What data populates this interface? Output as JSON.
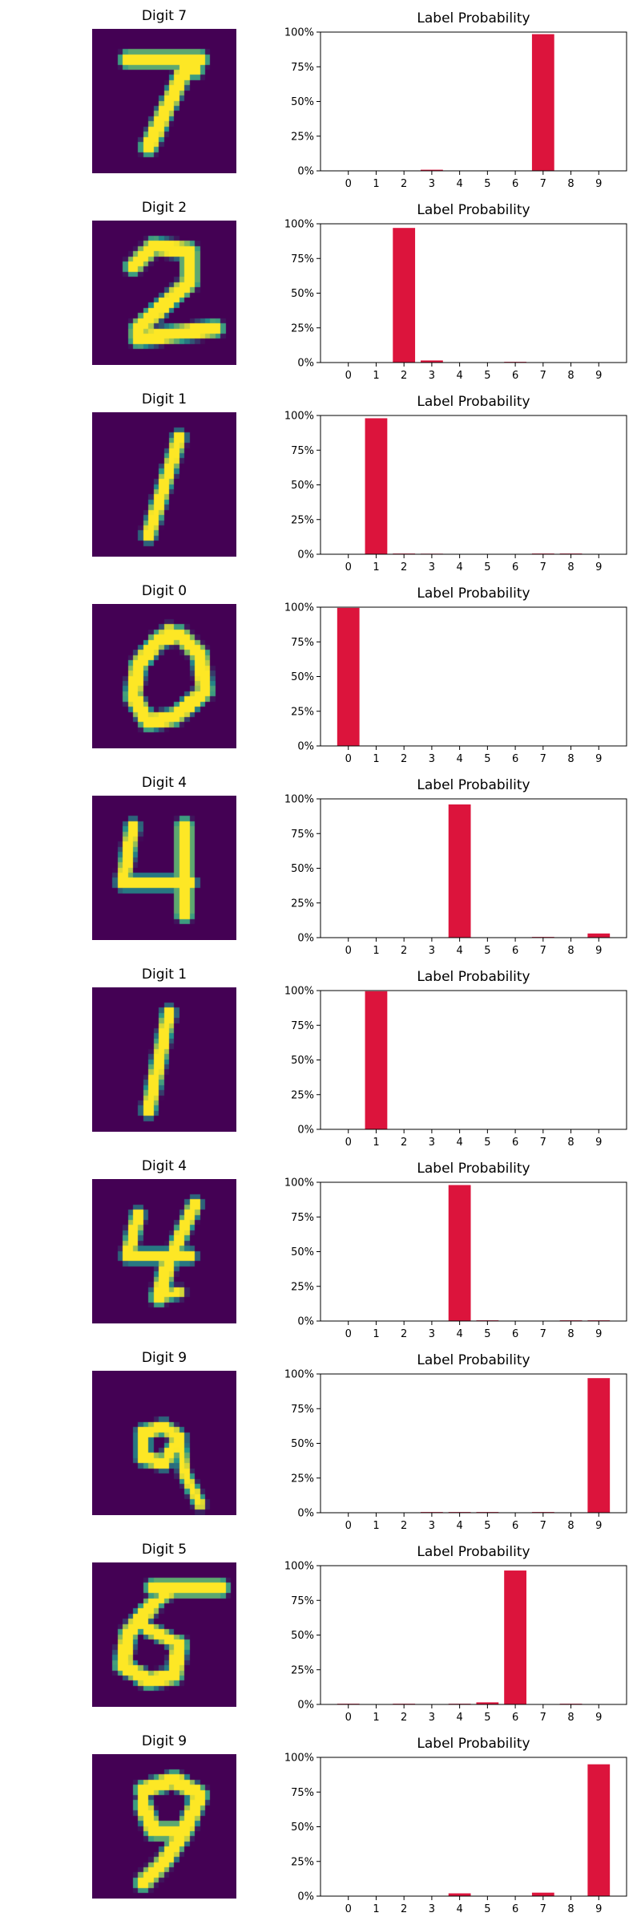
{
  "colors": {
    "bar": "#dc143c",
    "image_bg": "#440154",
    "image_fg": "#fde725",
    "image_mid": "#21918c"
  },
  "chart_data": [
    {
      "type": "bar",
      "image_title": "Digit 7",
      "title": "Label Probability",
      "categories": [
        "0",
        "1",
        "2",
        "3",
        "4",
        "5",
        "6",
        "7",
        "8",
        "9"
      ],
      "values": [
        0,
        0,
        0,
        0.8,
        0,
        0,
        0,
        98.5,
        0,
        0
      ],
      "ylim": [
        0,
        100
      ],
      "yticks": [
        "0%",
        "25%",
        "50%",
        "75%",
        "100%"
      ]
    },
    {
      "type": "bar",
      "image_title": "Digit 2",
      "title": "Label Probability",
      "categories": [
        "0",
        "1",
        "2",
        "3",
        "4",
        "5",
        "6",
        "7",
        "8",
        "9"
      ],
      "values": [
        0,
        0,
        97,
        1.5,
        0,
        0,
        0.5,
        0,
        0,
        0
      ],
      "ylim": [
        0,
        100
      ],
      "yticks": [
        "0%",
        "25%",
        "50%",
        "75%",
        "100%"
      ]
    },
    {
      "type": "bar",
      "image_title": "Digit 1",
      "title": "Label Probability",
      "categories": [
        "0",
        "1",
        "2",
        "3",
        "4",
        "5",
        "6",
        "7",
        "8",
        "9"
      ],
      "values": [
        0,
        98,
        0.5,
        0.4,
        0,
        0,
        0,
        0.5,
        0.5,
        0
      ],
      "ylim": [
        0,
        100
      ],
      "yticks": [
        "0%",
        "25%",
        "50%",
        "75%",
        "100%"
      ]
    },
    {
      "type": "bar",
      "image_title": "Digit 0",
      "title": "Label Probability",
      "categories": [
        "0",
        "1",
        "2",
        "3",
        "4",
        "5",
        "6",
        "7",
        "8",
        "9"
      ],
      "values": [
        99.5,
        0,
        0,
        0,
        0,
        0,
        0,
        0,
        0,
        0
      ],
      "ylim": [
        0,
        100
      ],
      "yticks": [
        "0%",
        "25%",
        "50%",
        "75%",
        "100%"
      ]
    },
    {
      "type": "bar",
      "image_title": "Digit 4",
      "title": "Label Probability",
      "categories": [
        "0",
        "1",
        "2",
        "3",
        "4",
        "5",
        "6",
        "7",
        "8",
        "9"
      ],
      "values": [
        0,
        0,
        0,
        0,
        96,
        0,
        0,
        0.5,
        0,
        3
      ],
      "ylim": [
        0,
        100
      ],
      "yticks": [
        "0%",
        "25%",
        "50%",
        "75%",
        "100%"
      ]
    },
    {
      "type": "bar",
      "image_title": "Digit 1",
      "title": "Label Probability",
      "categories": [
        "0",
        "1",
        "2",
        "3",
        "4",
        "5",
        "6",
        "7",
        "8",
        "9"
      ],
      "values": [
        0,
        99.5,
        0,
        0,
        0,
        0,
        0,
        0,
        0,
        0
      ],
      "ylim": [
        0,
        100
      ],
      "yticks": [
        "0%",
        "25%",
        "50%",
        "75%",
        "100%"
      ]
    },
    {
      "type": "bar",
      "image_title": "Digit 4",
      "title": "Label Probability",
      "categories": [
        "0",
        "1",
        "2",
        "3",
        "4",
        "5",
        "6",
        "7",
        "8",
        "9"
      ],
      "values": [
        0,
        0,
        0,
        0,
        98,
        0.5,
        0,
        0,
        0.5,
        0.5
      ],
      "ylim": [
        0,
        100
      ],
      "yticks": [
        "0%",
        "25%",
        "50%",
        "75%",
        "100%"
      ]
    },
    {
      "type": "bar",
      "image_title": "Digit 9",
      "title": "Label Probability",
      "categories": [
        "0",
        "1",
        "2",
        "3",
        "4",
        "5",
        "6",
        "7",
        "8",
        "9"
      ],
      "values": [
        0,
        0,
        0,
        0.5,
        0.5,
        0.5,
        0,
        0.5,
        0,
        97
      ],
      "ylim": [
        0,
        100
      ],
      "yticks": [
        "0%",
        "25%",
        "50%",
        "75%",
        "100%"
      ]
    },
    {
      "type": "bar",
      "image_title": "Digit 5",
      "title": "Label Probability",
      "categories": [
        "0",
        "1",
        "2",
        "3",
        "4",
        "5",
        "6",
        "7",
        "8",
        "9"
      ],
      "values": [
        0.5,
        0,
        0.5,
        0,
        0.5,
        1.5,
        96.5,
        0,
        0.5,
        0
      ],
      "ylim": [
        0,
        100
      ],
      "yticks": [
        "0%",
        "25%",
        "50%",
        "75%",
        "100%"
      ]
    },
    {
      "type": "bar",
      "image_title": "Digit 9",
      "title": "Label Probability",
      "categories": [
        "0",
        "1",
        "2",
        "3",
        "4",
        "5",
        "6",
        "7",
        "8",
        "9"
      ],
      "values": [
        0,
        0,
        0,
        0,
        2,
        0,
        0,
        2.5,
        0,
        95
      ],
      "ylim": [
        0,
        100
      ],
      "yticks": [
        "0%",
        "25%",
        "50%",
        "75%",
        "100%"
      ]
    }
  ],
  "digit_images": [
    {
      "strokes": [
        [
          7,
          6,
          21,
          6,
          3
        ],
        [
          19,
          6,
          11,
          23,
          3
        ],
        [
          19,
          6,
          20,
          8,
          3
        ]
      ]
    },
    {
      "strokes": [
        [
          8,
          9,
          12,
          5,
          3
        ],
        [
          12,
          5,
          19,
          6,
          3
        ],
        [
          19,
          6,
          19,
          12,
          3
        ],
        [
          19,
          12,
          9,
          21,
          3
        ],
        [
          9,
          21,
          9,
          23,
          3
        ],
        [
          9,
          23,
          24,
          21,
          3
        ]
      ]
    },
    {
      "strokes": [
        [
          17,
          5,
          11,
          24,
          2.5
        ]
      ]
    },
    {
      "strokes": [
        [
          13,
          7,
          17,
          6,
          3
        ],
        [
          17,
          6,
          21,
          10,
          3
        ],
        [
          21,
          10,
          22,
          17,
          3
        ],
        [
          22,
          17,
          16,
          22,
          3
        ],
        [
          16,
          22,
          11,
          23,
          3
        ],
        [
          11,
          23,
          8,
          18,
          3
        ],
        [
          8,
          18,
          9,
          12,
          3
        ],
        [
          9,
          12,
          13,
          7,
          3
        ],
        [
          13,
          7,
          15,
          5,
          2
        ]
      ]
    },
    {
      "strokes": [
        [
          8,
          6,
          6,
          17,
          2.5
        ],
        [
          6,
          17,
          19,
          17,
          2.5
        ],
        [
          18,
          6,
          18,
          23,
          3
        ]
      ]
    },
    {
      "strokes": [
        [
          15,
          5,
          11,
          24,
          2.5
        ]
      ]
    },
    {
      "strokes": [
        [
          9,
          7,
          7,
          15,
          2.5
        ],
        [
          7,
          15,
          19,
          15,
          2.5
        ],
        [
          20,
          5,
          15,
          16,
          2.5
        ],
        [
          15,
          16,
          13,
          23,
          3
        ],
        [
          13,
          23,
          17,
          22,
          2
        ]
      ]
    },
    {
      "strokes": [
        [
          14,
          11,
          10,
          12,
          2.5
        ],
        [
          10,
          12,
          10,
          17,
          2.5
        ],
        [
          10,
          17,
          14,
          18,
          2.5
        ],
        [
          14,
          18,
          17,
          13,
          2.5
        ],
        [
          17,
          13,
          14,
          11,
          2.5
        ],
        [
          17,
          13,
          18,
          20,
          2
        ],
        [
          18,
          20,
          21,
          26,
          2
        ]
      ]
    },
    {
      "strokes": [
        [
          12,
          5,
          25,
          5,
          3
        ],
        [
          12,
          8,
          15,
          6,
          2
        ],
        [
          12,
          8,
          7,
          14,
          3
        ],
        [
          7,
          14,
          6,
          20,
          3
        ],
        [
          6,
          20,
          11,
          23,
          3
        ],
        [
          11,
          23,
          16,
          22,
          3
        ],
        [
          16,
          22,
          17,
          16,
          3
        ],
        [
          17,
          16,
          11,
          13,
          2.5
        ]
      ]
    },
    {
      "strokes": [
        [
          10,
          7,
          16,
          5,
          3
        ],
        [
          16,
          5,
          21,
          8,
          3
        ],
        [
          21,
          8,
          18,
          15,
          3
        ],
        [
          18,
          15,
          12,
          15,
          3
        ],
        [
          12,
          15,
          10,
          10,
          3
        ],
        [
          10,
          10,
          10,
          7,
          2
        ],
        [
          18,
          15,
          14,
          21,
          3
        ],
        [
          14,
          21,
          10,
          25,
          3
        ]
      ]
    }
  ]
}
